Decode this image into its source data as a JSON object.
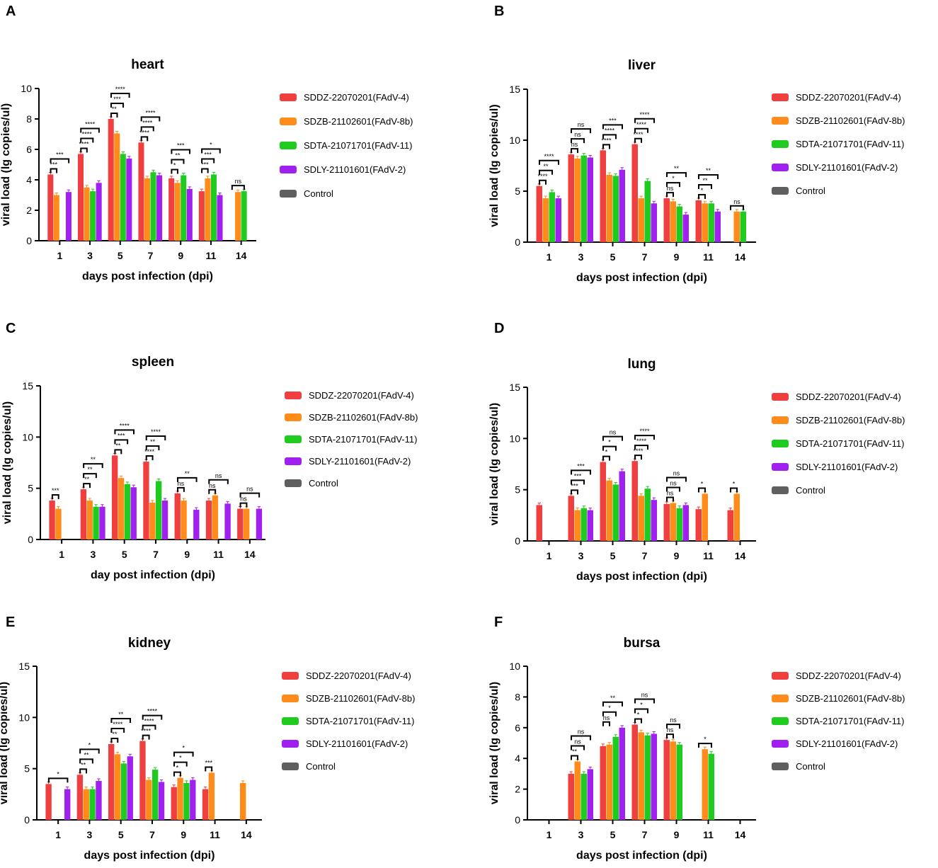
{
  "series_styles": [
    {
      "name": "SDDZ-22070201(FAdV-4)",
      "color": "#ef3f3f"
    },
    {
      "name": "SDZB-21102601(FAdV-8b)",
      "color": "#ff8c1a"
    },
    {
      "name": "SDTA-21071701(FAdV-11)",
      "color": "#1fcb1f"
    },
    {
      "name": "SDLY-21101601(FAdV-2)",
      "color": "#a020f0"
    },
    {
      "name": "Control",
      "color": "#5f5f5f"
    }
  ],
  "chart_data": [
    {
      "panel": "A",
      "type": "bar",
      "title": "heart",
      "xlabel": "days post infection (dpi)",
      "ylabel": "viral load (lg copies/ul)",
      "ylim": [
        0,
        10
      ],
      "yticks": [
        "0",
        "2",
        "4",
        "6",
        "8",
        "10"
      ],
      "categories": [
        "1",
        "3",
        "5",
        "7",
        "9",
        "11",
        "14"
      ],
      "series": [
        {
          "name": "SDDZ-22070201(FAdV-4)",
          "values": [
            4.35,
            5.7,
            8.0,
            6.45,
            4.1,
            3.25,
            null
          ]
        },
        {
          "name": "SDZB-21102601(FAdV-8b)",
          "values": [
            3.0,
            3.5,
            7.05,
            4.1,
            3.8,
            4.1,
            3.2
          ]
        },
        {
          "name": "SDTA-21071701(FAdV-11)",
          "values": [
            null,
            3.25,
            5.7,
            4.5,
            4.3,
            4.35,
            3.25
          ]
        },
        {
          "name": "SDLY-21101601(FAdV-2)",
          "values": [
            3.2,
            3.8,
            5.4,
            4.3,
            3.4,
            3.0,
            null
          ]
        },
        {
          "name": "Control",
          "values": [
            null,
            null,
            null,
            null,
            null,
            null,
            null
          ]
        }
      ],
      "significance": [
        {
          "cat": 0,
          "labels": [
            "***",
            "***"
          ]
        },
        {
          "cat": 1,
          "labels": [
            "****",
            "****",
            "****"
          ]
        },
        {
          "cat": 2,
          "labels": [
            "**",
            "***",
            "****"
          ]
        },
        {
          "cat": 3,
          "labels": [
            "****",
            "****",
            "****"
          ]
        },
        {
          "cat": 4,
          "labels": [
            "*",
            "**",
            "***"
          ]
        },
        {
          "cat": 5,
          "labels": [
            "***",
            "***",
            "*"
          ]
        },
        {
          "cat": 6,
          "labels": [
            "ns"
          ]
        }
      ]
    },
    {
      "panel": "B",
      "type": "bar",
      "title": "liver",
      "xlabel": "days post infection (dpi)",
      "ylabel": "viral load (lg copies/ul)",
      "ylim": [
        0,
        15
      ],
      "yticks": [
        "0",
        "5",
        "10",
        "15"
      ],
      "categories": [
        "1",
        "3",
        "5",
        "7",
        "9",
        "11",
        "14"
      ],
      "series": [
        {
          "name": "SDDZ-22070201(FAdV-4)",
          "values": [
            5.5,
            8.6,
            9.0,
            9.6,
            4.3,
            4.1,
            null
          ]
        },
        {
          "name": "SDZB-21102601(FAdV-8b)",
          "values": [
            4.3,
            8.2,
            6.6,
            4.3,
            4.0,
            3.8,
            3.0
          ]
        },
        {
          "name": "SDTA-21071701(FAdV-11)",
          "values": [
            4.9,
            8.5,
            6.5,
            6.0,
            3.5,
            3.8,
            3.0
          ]
        },
        {
          "name": "SDLY-21101601(FAdV-2)",
          "values": [
            4.3,
            8.3,
            7.1,
            3.8,
            2.7,
            3.0,
            null
          ]
        },
        {
          "name": "Control",
          "values": [
            null,
            null,
            null,
            null,
            null,
            null,
            null
          ]
        }
      ],
      "significance": [
        {
          "cat": 0,
          "labels": [
            "****",
            "**",
            "****"
          ]
        },
        {
          "cat": 1,
          "labels": [
            "ns",
            "ns",
            "ns"
          ]
        },
        {
          "cat": 2,
          "labels": [
            "****",
            "****",
            "***"
          ]
        },
        {
          "cat": 3,
          "labels": [
            "****",
            "****",
            "****"
          ]
        },
        {
          "cat": 4,
          "labels": [
            "ns",
            "*",
            "**"
          ]
        },
        {
          "cat": 5,
          "labels": [
            "*",
            "**",
            "**"
          ]
        },
        {
          "cat": 6,
          "labels": [
            "ns"
          ]
        }
      ]
    },
    {
      "panel": "C",
      "type": "bar",
      "title": "spleen",
      "xlabel": "day post infection (dpi)",
      "ylabel": "viral load (lg copies/ul)",
      "ylim": [
        0,
        15
      ],
      "yticks": [
        "0",
        "5",
        "10",
        "15"
      ],
      "categories": [
        "1",
        "3",
        "5",
        "7",
        "9",
        "11",
        "14"
      ],
      "series": [
        {
          "name": "SDDZ-22070201(FAdV-4)",
          "values": [
            3.8,
            4.9,
            8.2,
            7.6,
            4.5,
            3.8,
            3.0
          ]
        },
        {
          "name": "SDZB-21102601(FAdV-8b)",
          "values": [
            3.0,
            3.8,
            6.0,
            3.6,
            3.8,
            4.3,
            3.0
          ]
        },
        {
          "name": "SDTA-21071701(FAdV-11)",
          "values": [
            null,
            3.2,
            5.4,
            5.7,
            null,
            null,
            null
          ]
        },
        {
          "name": "SDLY-21101601(FAdV-2)",
          "values": [
            null,
            3.2,
            5.1,
            3.8,
            2.9,
            3.5,
            3.0
          ]
        },
        {
          "name": "Control",
          "values": [
            null,
            null,
            null,
            null,
            null,
            null,
            null
          ]
        }
      ],
      "significance": [
        {
          "cat": 0,
          "labels": [
            "***"
          ]
        },
        {
          "cat": 1,
          "labels": [
            "**",
            "**",
            "**"
          ]
        },
        {
          "cat": 2,
          "labels": [
            "**",
            "***",
            "****"
          ]
        },
        {
          "cat": 3,
          "labels": [
            "****",
            "**",
            "****"
          ]
        },
        {
          "cat": 4,
          "labels": [
            "ns",
            "**"
          ]
        },
        {
          "cat": 5,
          "labels": [
            "ns",
            "ns"
          ]
        },
        {
          "cat": 6,
          "labels": [
            "ns",
            "ns"
          ]
        }
      ]
    },
    {
      "panel": "D",
      "type": "bar",
      "title": "lung",
      "xlabel": "days post infection (dpi)",
      "ylabel": "viral load (lg copies/ul)",
      "ylim": [
        0,
        15
      ],
      "yticks": [
        "0",
        "5",
        "10",
        "15"
      ],
      "categories": [
        "1",
        "3",
        "5",
        "7",
        "9",
        "11",
        "14"
      ],
      "series": [
        {
          "name": "SDDZ-22070201(FAdV-4)",
          "values": [
            3.5,
            4.4,
            7.7,
            7.8,
            3.6,
            3.1,
            3.0
          ]
        },
        {
          "name": "SDZB-21102601(FAdV-8b)",
          "values": [
            null,
            3.0,
            5.9,
            4.4,
            3.7,
            4.6,
            4.6
          ]
        },
        {
          "name": "SDTA-21071701(FAdV-11)",
          "values": [
            null,
            3.2,
            5.5,
            5.1,
            3.2,
            null,
            null
          ]
        },
        {
          "name": "SDLY-21101601(FAdV-2)",
          "values": [
            null,
            3.0,
            6.8,
            4.0,
            3.5,
            null,
            null
          ]
        },
        {
          "name": "Control",
          "values": [
            null,
            null,
            null,
            null,
            null,
            null,
            null
          ]
        }
      ],
      "significance": [
        {
          "cat": 1,
          "labels": [
            "***",
            "***",
            "***"
          ]
        },
        {
          "cat": 2,
          "labels": [
            "*",
            "*",
            "ns"
          ]
        },
        {
          "cat": 3,
          "labels": [
            "****",
            "****",
            "****"
          ]
        },
        {
          "cat": 4,
          "labels": [
            "ns",
            "ns",
            "ns"
          ]
        },
        {
          "cat": 5,
          "labels": [
            "*"
          ]
        },
        {
          "cat": 6,
          "labels": [
            "*"
          ]
        }
      ]
    },
    {
      "panel": "E",
      "type": "bar",
      "title": "kidney",
      "xlabel": "days post infection (dpi)",
      "ylabel": "viral load (lg copies/ul)",
      "ylim": [
        0,
        15
      ],
      "yticks": [
        "0",
        "5",
        "10",
        "15"
      ],
      "categories": [
        "1",
        "3",
        "5",
        "7",
        "9",
        "11",
        "14"
      ],
      "series": [
        {
          "name": "SDDZ-22070201(FAdV-4)",
          "values": [
            3.5,
            4.4,
            7.4,
            7.7,
            3.2,
            3.0,
            null
          ]
        },
        {
          "name": "SDZB-21102601(FAdV-8b)",
          "values": [
            null,
            3.0,
            6.4,
            3.9,
            4.1,
            4.6,
            3.6
          ]
        },
        {
          "name": "SDTA-21071701(FAdV-11)",
          "values": [
            null,
            3.0,
            5.5,
            4.9,
            3.6,
            null,
            null
          ]
        },
        {
          "name": "SDLY-21101601(FAdV-2)",
          "values": [
            3.0,
            3.8,
            6.2,
            3.7,
            3.9,
            null,
            null
          ]
        },
        {
          "name": "Control",
          "values": [
            null,
            null,
            null,
            null,
            null,
            null,
            null
          ]
        }
      ],
      "significance": [
        {
          "cat": 0,
          "labels": [
            "*"
          ]
        },
        {
          "cat": 1,
          "labels": [
            "**",
            "**",
            "*"
          ]
        },
        {
          "cat": 2,
          "labels": [
            "**",
            "****",
            "**"
          ]
        },
        {
          "cat": 3,
          "labels": [
            "****",
            "****",
            "****"
          ]
        },
        {
          "cat": 4,
          "labels": [
            "*",
            "*",
            "*"
          ]
        },
        {
          "cat": 5,
          "labels": [
            "***"
          ]
        }
      ]
    },
    {
      "panel": "F",
      "type": "bar",
      "title": "bursa",
      "xlabel": "days post infection (dpi)",
      "ylabel": "viral load (lg copies/ul)",
      "ylim": [
        0,
        10
      ],
      "yticks": [
        "0",
        "2",
        "4",
        "6",
        "8",
        "10"
      ],
      "categories": [
        "1",
        "3",
        "5",
        "7",
        "9",
        "11",
        "14"
      ],
      "series": [
        {
          "name": "SDDZ-22070201(FAdV-4)",
          "values": [
            null,
            3.0,
            4.8,
            6.2,
            5.2,
            null,
            null
          ]
        },
        {
          "name": "SDZB-21102601(FAdV-8b)",
          "values": [
            null,
            3.8,
            4.9,
            5.7,
            5.1,
            4.6,
            null
          ]
        },
        {
          "name": "SDTA-21071701(FAdV-11)",
          "values": [
            null,
            3.0,
            5.4,
            5.5,
            4.9,
            4.3,
            null
          ]
        },
        {
          "name": "SDLY-21101601(FAdV-2)",
          "values": [
            null,
            3.3,
            6.0,
            5.6,
            null,
            null,
            null
          ]
        },
        {
          "name": "Control",
          "values": [
            null,
            null,
            null,
            null,
            null,
            null,
            null
          ]
        }
      ],
      "significance": [
        {
          "cat": 1,
          "labels": [
            "**",
            "ns",
            "ns"
          ]
        },
        {
          "cat": 2,
          "labels": [
            "ns",
            "*",
            "**"
          ]
        },
        {
          "cat": 3,
          "labels": [
            "*",
            "*",
            "ns"
          ]
        },
        {
          "cat": 4,
          "labels": [
            "ns",
            "ns"
          ]
        },
        {
          "cat": 5,
          "labels": [
            "*"
          ]
        }
      ]
    }
  ]
}
